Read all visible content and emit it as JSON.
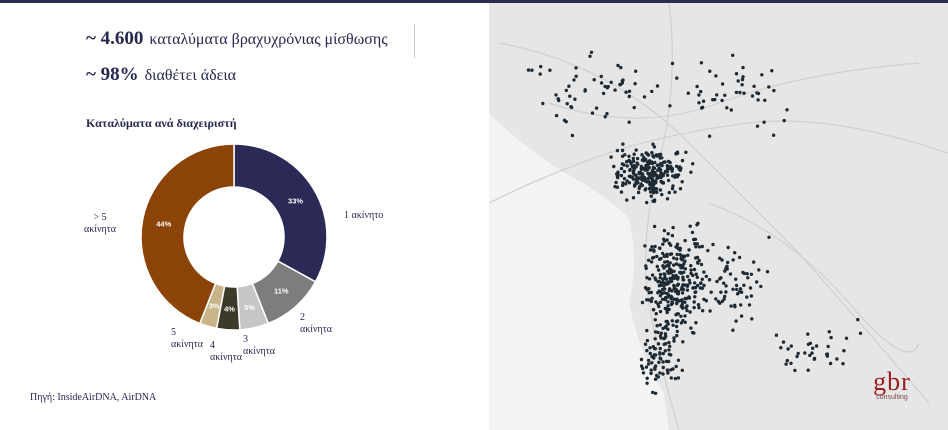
{
  "stats": [
    {
      "value": "~ 4.600",
      "text": "καταλύματα βραχυχρόνιας μίσθωσης"
    },
    {
      "value": "~ 98%",
      "text": "διαθέτει άδεια"
    }
  ],
  "chart_data": {
    "type": "pie",
    "title": "Καταλύματα ανά διαχειριστή",
    "slices": [
      {
        "label": "1 ακίνητο",
        "value": 33,
        "value_label": "33%",
        "color": "#2b2a56"
      },
      {
        "label": "2 ακίνητα",
        "value": 11,
        "value_label": "11%",
        "color": "#7d7d7d"
      },
      {
        "label": "3 ακίνητα",
        "value": 5,
        "value_label": "5%",
        "color": "#c6c6c6"
      },
      {
        "label": "4 ακίνητα",
        "value": 4,
        "value_label": "4%",
        "color": "#3d3a2a"
      },
      {
        "label": "5 ακίνητα",
        "value": 3,
        "value_label": "3%",
        "color": "#c9b48a"
      },
      {
        "label": "> 5 ακίνητα",
        "value": 44,
        "value_label": "44%",
        "color": "#8b4308"
      }
    ]
  },
  "source": "Πηγή: InsideAirDNA, AirDNA",
  "logo": {
    "mark": "gbr",
    "sub": "consulting",
    "color": "#9b1c1c"
  },
  "map": {
    "background": "#e6e6e6",
    "marker_color": "#1e2a33"
  }
}
